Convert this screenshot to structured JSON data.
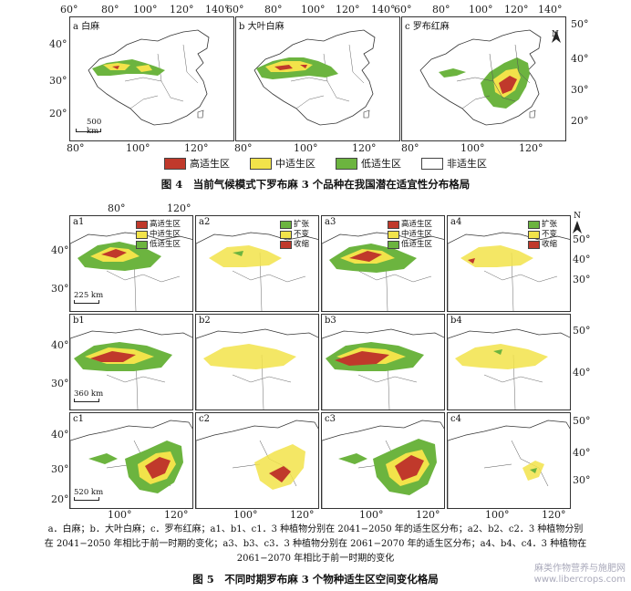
{
  "fig4": {
    "top_ticks": [
      "60°",
      "80°",
      "100°",
      "120°",
      "140°",
      "60°",
      "80°",
      "100°",
      "120°",
      "140°",
      "60°",
      "80°",
      "100°",
      "120°",
      "140°"
    ],
    "bottom_ticks": [
      "80°",
      "100°",
      "120°",
      "80°",
      "100°",
      "120°",
      "80°",
      "100°",
      "120°"
    ],
    "left_ticks": [
      "40°",
      "30°",
      "20°"
    ],
    "right_ticks": [
      "50°",
      "40°",
      "30°",
      "20°"
    ],
    "panels": [
      {
        "tag": "a 白麻"
      },
      {
        "tag": "b 大叶白麻"
      },
      {
        "tag": "c 罗布红麻"
      }
    ],
    "scale": "500 km",
    "north": "N",
    "legend": [
      {
        "label": "高适生区",
        "color": "#c0392b"
      },
      {
        "label": "中适生区",
        "color": "#f2e34a"
      },
      {
        "label": "低适生区",
        "color": "#6cb43f"
      },
      {
        "label": "非适生区",
        "color": "#ffffff"
      }
    ],
    "caption": "图 4　当前气候模式下罗布麻 3 个品种在我国潜在适宜性分布格局"
  },
  "fig5": {
    "top_ticks": [
      "80°",
      "120°"
    ],
    "bottom_ticks": [
      "100°",
      "120°",
      "100°",
      "120°",
      "100°",
      "120°",
      "100°",
      "120°"
    ],
    "rows": [
      {
        "left_ticks": [
          "40°",
          "30°"
        ],
        "right_ticks": [
          "50°",
          "40°",
          "30°"
        ],
        "scale": "225 km",
        "panels": [
          {
            "tag": "a1"
          },
          {
            "tag": "a2"
          },
          {
            "tag": "a3"
          },
          {
            "tag": "a4"
          }
        ]
      },
      {
        "left_ticks": [
          "40°",
          "30°"
        ],
        "right_ticks": [
          "50°",
          "40°"
        ],
        "scale": "360 km",
        "panels": [
          {
            "tag": "b1"
          },
          {
            "tag": "b2"
          },
          {
            "tag": "b3"
          },
          {
            "tag": "b4"
          }
        ]
      },
      {
        "left_ticks": [
          "40°",
          "30°",
          "20°"
        ],
        "right_ticks": [
          "50°",
          "40°",
          "30°"
        ],
        "scale": "520 km",
        "panels": [
          {
            "tag": "c1"
          },
          {
            "tag": "c2"
          },
          {
            "tag": "c3"
          },
          {
            "tag": "c4"
          }
        ]
      }
    ],
    "suit_legend": [
      {
        "label": "高适生区",
        "color": "#c0392b"
      },
      {
        "label": "中适生区",
        "color": "#f2e34a"
      },
      {
        "label": "低适生区",
        "color": "#6cb43f"
      }
    ],
    "change_legend": [
      {
        "label": "扩张",
        "color": "#6cb43f"
      },
      {
        "label": "不变",
        "color": "#f2e34a"
      },
      {
        "label": "收缩",
        "color": "#c0392b"
      }
    ],
    "north": "N",
    "note_line1": "a．白麻；b．大叶白麻；c．罗布红麻；a1、b1、c1．3 种植物分别在 2041−2050 年的适生区分布；a2、b2、c2．3 种植物分别",
    "note_line2": "在 2041−2050 年相比于前一时期的变化；a3、b3、c3．3 种植物分别在 2061−2070 年的适生区分布；a4、b4、c4．3 种植物在",
    "note_line3": "2061−2070 年相比于前一时期的变化",
    "caption": "图 5　不同时期罗布麻 3 个物种适生区空间变化格局"
  },
  "watermark_line1": "麻类作物营养与施肥网",
  "watermark_line2": "www.libercrops.com"
}
